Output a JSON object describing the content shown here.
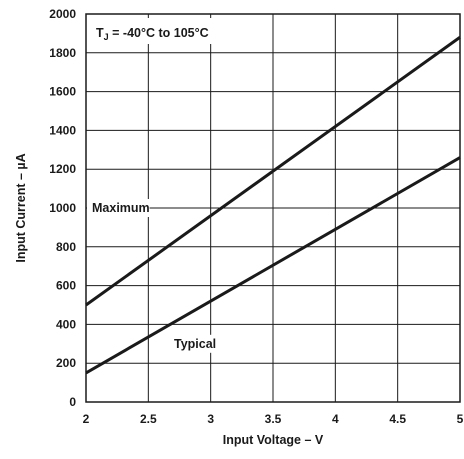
{
  "chart_data": {
    "type": "line",
    "xlabel": "Input Voltage – V",
    "ylabel": "Input Current – µA",
    "xlim": [
      2,
      5
    ],
    "ylim": [
      0,
      2000
    ],
    "x_ticks": [
      "2",
      "2.5",
      "3",
      "3.5",
      "4",
      "4.5",
      "5"
    ],
    "y_ticks": [
      "0",
      "200",
      "400",
      "600",
      "800",
      "1000",
      "1200",
      "1400",
      "1600",
      "1800",
      "2000"
    ],
    "grid": true,
    "annotation": {
      "subscript_base": "T",
      "subscript": "J",
      "text": " = -40°C to 105°C",
      "position": "top-left"
    },
    "series": [
      {
        "name": "Maximum",
        "x": [
          2,
          5
        ],
        "y": [
          500,
          1880
        ]
      },
      {
        "name": "Typical",
        "x": [
          2,
          5
        ],
        "y": [
          150,
          1260
        ]
      }
    ]
  }
}
